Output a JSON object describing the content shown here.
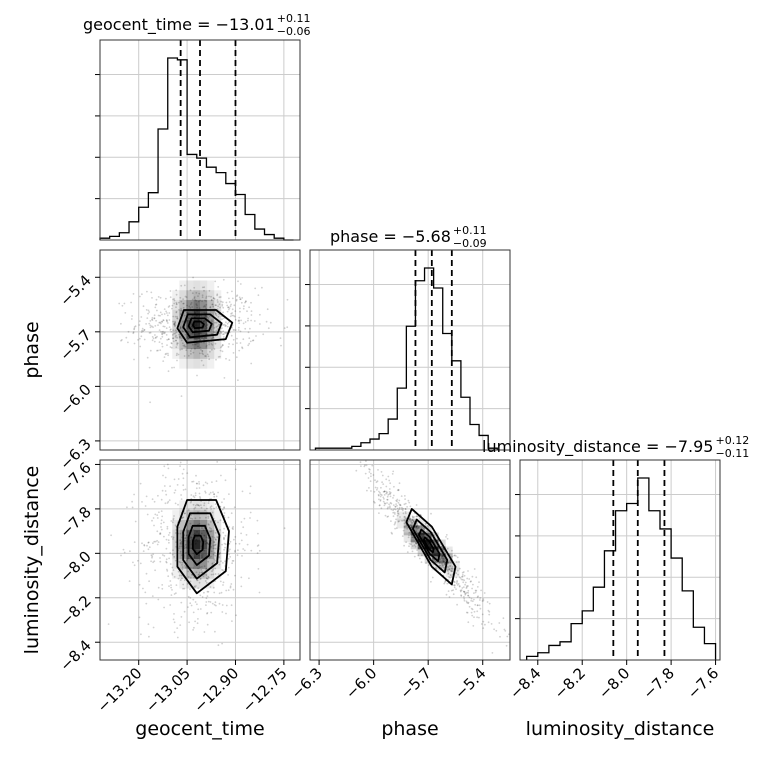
{
  "chart_data": {
    "type": "corner",
    "parameters": [
      "geocent_time",
      "phase",
      "luminosity_distance"
    ],
    "axis_labels": {
      "x": [
        "geocent_time",
        "phase",
        "luminosity_distance"
      ],
      "y": [
        "phase",
        "luminosity_distance"
      ]
    },
    "ranges": {
      "geocent_time": [
        -13.32,
        -12.7
      ],
      "phase": [
        -6.35,
        -5.25
      ],
      "luminosity_distance": [
        -8.48,
        -7.58
      ]
    },
    "ticks": {
      "geocent_time": [
        "−13.20",
        "−13.05",
        "−12.90",
        "−12.75"
      ],
      "phase": [
        "−6.3",
        "−6.0",
        "−5.7",
        "−5.4"
      ],
      "luminosity_distance": [
        "−8.4",
        "−8.2",
        "−8.0",
        "−7.8",
        "−7.6"
      ]
    },
    "titles": [
      {
        "param": "geocent_time",
        "main": "geocent_time = −13.01",
        "sup": "+0.11",
        "sub": "−0.06"
      },
      {
        "param": "phase",
        "main": "phase = −5.68",
        "sup": "+0.11",
        "sub": "−0.09"
      },
      {
        "param": "luminosity_distance",
        "main": "luminosity_distance = −7.95",
        "sup": "+0.12",
        "sub": "−0.11"
      }
    ],
    "quantiles": {
      "geocent_time": [
        -13.07,
        -13.01,
        -12.9
      ],
      "phase": [
        -5.77,
        -5.68,
        -5.57
      ],
      "luminosity_distance": [
        -8.06,
        -7.95,
        -7.83
      ]
    },
    "histograms": {
      "geocent_time": {
        "edges": [
          -13.32,
          -13.29,
          -13.26,
          -13.23,
          -13.2,
          -13.17,
          -13.14,
          -13.11,
          -13.08,
          -13.05,
          -13.02,
          -12.99,
          -12.96,
          -12.93,
          -12.9,
          -12.87,
          -12.84,
          -12.81,
          -12.78,
          -12.75,
          -12.72
        ],
        "counts": [
          1,
          2,
          4,
          10,
          18,
          26,
          61,
          100,
          99,
          47,
          45,
          40,
          37,
          31,
          25,
          14,
          6,
          3,
          1,
          0
        ]
      },
      "phase": {
        "edges": [
          -6.32,
          -6.27,
          -6.22,
          -6.17,
          -6.12,
          -6.07,
          -6.02,
          -5.97,
          -5.92,
          -5.87,
          -5.82,
          -5.77,
          -5.72,
          -5.67,
          -5.62,
          -5.57,
          -5.52,
          -5.47,
          -5.42,
          -5.37,
          -5.32
        ],
        "counts": [
          1,
          1,
          1,
          1,
          2,
          4,
          6,
          9,
          17,
          34,
          68,
          93,
          100,
          89,
          64,
          49,
          29,
          14,
          8,
          1
        ]
      },
      "luminosity_distance": {
        "edges": [
          -8.45,
          -8.4,
          -8.35,
          -8.3,
          -8.25,
          -8.2,
          -8.15,
          -8.1,
          -8.05,
          -8.0,
          -7.95,
          -7.9,
          -7.85,
          -7.8,
          -7.75,
          -7.7,
          -7.65,
          -7.6
        ],
        "counts": [
          2,
          4,
          8,
          10,
          20,
          27,
          40,
          60,
          82,
          86,
          100,
          82,
          72,
          56,
          38,
          18,
          9
        ]
      }
    },
    "density_2d": [
      {
        "x": "geocent_time",
        "y": "phase",
        "center": [
          -13.02,
          -5.66
        ],
        "sd": [
          0.055,
          0.06
        ],
        "rho": 0.0,
        "contours": [
          [
            -13.06,
            -5.58
          ],
          [
            -12.96,
            -5.58
          ],
          [
            -12.91,
            -5.65
          ],
          [
            -12.93,
            -5.74
          ],
          [
            -13.05,
            -5.76
          ],
          [
            -13.08,
            -5.68
          ]
        ]
      },
      {
        "x": "geocent_time",
        "y": "luminosity_distance",
        "center": [
          -13.02,
          -7.96
        ],
        "sd": [
          0.05,
          0.1
        ],
        "rho": 0.0,
        "contours": [
          [
            -13.05,
            -7.76
          ],
          [
            -12.96,
            -7.76
          ],
          [
            -12.92,
            -7.9
          ],
          [
            -12.93,
            -8.08
          ],
          [
            -13.02,
            -8.18
          ],
          [
            -13.08,
            -8.06
          ],
          [
            -13.08,
            -7.88
          ]
        ]
      },
      {
        "x": "phase",
        "y": "luminosity_distance",
        "center": [
          -5.7,
          -7.96
        ],
        "sd": [
          0.1,
          0.1
        ],
        "rho": -0.95,
        "contours": [
          [
            -5.79,
            -7.8
          ],
          [
            -5.68,
            -7.88
          ],
          [
            -5.55,
            -8.06
          ],
          [
            -5.57,
            -8.14
          ],
          [
            -5.68,
            -8.06
          ],
          [
            -5.82,
            -7.86
          ]
        ]
      }
    ]
  }
}
